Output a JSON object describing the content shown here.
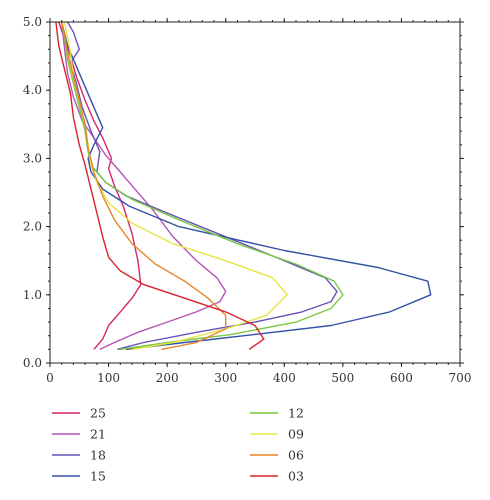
{
  "chart_data": {
    "type": "line",
    "title": "",
    "xlabel": "",
    "ylabel": "",
    "xlim": [
      0,
      700
    ],
    "ylim": [
      0.0,
      5.0
    ],
    "x_ticks": [
      0,
      100,
      200,
      300,
      400,
      500,
      600,
      700
    ],
    "x_tick_labels": [
      "0",
      "100",
      "200",
      "300",
      "400",
      "500",
      "600",
      "700"
    ],
    "y_ticks": [
      0.0,
      1.0,
      2.0,
      3.0,
      4.0,
      5.0
    ],
    "y_tick_labels": [
      "0.0",
      "1.0",
      "2.0",
      "3.0",
      "4.0",
      "5.0"
    ],
    "grid": false,
    "legend_position": "bottom",
    "series": [
      {
        "name": "25",
        "color": "#d6246e",
        "points": [
          [
            75,
            0.2
          ],
          [
            90,
            0.35
          ],
          [
            100,
            0.55
          ],
          [
            120,
            0.75
          ],
          [
            140,
            0.95
          ],
          [
            155,
            1.15
          ],
          [
            150,
            1.5
          ],
          [
            140,
            1.9
          ],
          [
            125,
            2.3
          ],
          [
            110,
            2.6
          ],
          [
            100,
            2.85
          ],
          [
            105,
            3.0
          ],
          [
            90,
            3.3
          ],
          [
            75,
            3.55
          ],
          [
            60,
            3.85
          ],
          [
            45,
            4.2
          ],
          [
            35,
            4.5
          ],
          [
            25,
            4.75
          ],
          [
            15,
            5.0
          ]
        ]
      },
      {
        "name": "21",
        "color": "#b455b8",
        "points": [
          [
            85,
            0.2
          ],
          [
            110,
            0.3
          ],
          [
            150,
            0.45
          ],
          [
            200,
            0.6
          ],
          [
            250,
            0.75
          ],
          [
            290,
            0.9
          ],
          [
            300,
            1.05
          ],
          [
            285,
            1.25
          ],
          [
            250,
            1.5
          ],
          [
            210,
            1.85
          ],
          [
            175,
            2.25
          ],
          [
            145,
            2.55
          ],
          [
            120,
            2.8
          ],
          [
            95,
            3.05
          ],
          [
            75,
            3.3
          ],
          [
            55,
            3.55
          ],
          [
            40,
            3.9
          ],
          [
            30,
            4.25
          ],
          [
            25,
            4.6
          ],
          [
            20,
            5.0
          ]
        ]
      },
      {
        "name": "18",
        "color": "#6a51b5",
        "points": [
          [
            115,
            0.2
          ],
          [
            160,
            0.3
          ],
          [
            250,
            0.45
          ],
          [
            350,
            0.6
          ],
          [
            430,
            0.75
          ],
          [
            480,
            0.9
          ],
          [
            490,
            1.05
          ],
          [
            470,
            1.25
          ],
          [
            400,
            1.5
          ],
          [
            300,
            1.85
          ],
          [
            200,
            2.2
          ],
          [
            130,
            2.45
          ],
          [
            95,
            2.65
          ],
          [
            80,
            2.8
          ],
          [
            85,
            3.1
          ],
          [
            70,
            3.4
          ],
          [
            55,
            3.75
          ],
          [
            45,
            4.1
          ],
          [
            35,
            4.4
          ],
          [
            50,
            4.6
          ],
          [
            40,
            4.85
          ],
          [
            30,
            5.0
          ]
        ]
      },
      {
        "name": "15",
        "color": "#3551a5",
        "points": [
          [
            130,
            0.2
          ],
          [
            230,
            0.3
          ],
          [
            350,
            0.42
          ],
          [
            480,
            0.55
          ],
          [
            580,
            0.75
          ],
          [
            650,
            1.0
          ],
          [
            645,
            1.2
          ],
          [
            560,
            1.4
          ],
          [
            400,
            1.65
          ],
          [
            220,
            2.0
          ],
          [
            135,
            2.3
          ],
          [
            90,
            2.55
          ],
          [
            70,
            2.8
          ],
          [
            65,
            3.0
          ],
          [
            75,
            3.2
          ],
          [
            90,
            3.45
          ],
          [
            75,
            3.75
          ],
          [
            60,
            4.05
          ],
          [
            45,
            4.35
          ],
          [
            30,
            4.65
          ],
          [
            20,
            5.0
          ]
        ]
      },
      {
        "name": "12",
        "color": "#7ac943",
        "points": [
          [
            120,
            0.2
          ],
          [
            200,
            0.3
          ],
          [
            310,
            0.42
          ],
          [
            420,
            0.6
          ],
          [
            480,
            0.8
          ],
          [
            500,
            1.0
          ],
          [
            485,
            1.2
          ],
          [
            420,
            1.45
          ],
          [
            320,
            1.75
          ],
          [
            220,
            2.1
          ],
          [
            140,
            2.4
          ],
          [
            95,
            2.65
          ],
          [
            70,
            2.9
          ],
          [
            65,
            3.1
          ],
          [
            60,
            3.4
          ],
          [
            50,
            3.75
          ],
          [
            40,
            4.1
          ],
          [
            30,
            4.45
          ],
          [
            25,
            4.75
          ],
          [
            20,
            5.0
          ]
        ]
      },
      {
        "name": "09",
        "color": "#e8e542",
        "points": [
          [
            140,
            0.2
          ],
          [
            210,
            0.3
          ],
          [
            300,
            0.5
          ],
          [
            370,
            0.7
          ],
          [
            405,
            1.0
          ],
          [
            380,
            1.25
          ],
          [
            300,
            1.5
          ],
          [
            210,
            1.75
          ],
          [
            140,
            2.05
          ],
          [
            100,
            2.35
          ],
          [
            80,
            2.65
          ],
          [
            70,
            2.9
          ],
          [
            65,
            3.2
          ],
          [
            60,
            3.5
          ],
          [
            50,
            3.85
          ],
          [
            40,
            4.2
          ],
          [
            35,
            4.55
          ],
          [
            25,
            5.0
          ]
        ]
      },
      {
        "name": "06",
        "color": "#e7862c",
        "points": [
          [
            190,
            0.2
          ],
          [
            250,
            0.3
          ],
          [
            300,
            0.5
          ],
          [
            300,
            0.7
          ],
          [
            270,
            0.95
          ],
          [
            230,
            1.2
          ],
          [
            180,
            1.45
          ],
          [
            140,
            1.75
          ],
          [
            110,
            2.1
          ],
          [
            90,
            2.45
          ],
          [
            75,
            2.8
          ],
          [
            65,
            3.15
          ],
          [
            60,
            3.5
          ],
          [
            50,
            3.85
          ],
          [
            40,
            4.2
          ],
          [
            30,
            4.55
          ],
          [
            25,
            4.8
          ],
          [
            20,
            5.0
          ]
        ]
      },
      {
        "name": "03",
        "color": "#d9232c",
        "points": [
          [
            340,
            0.2
          ],
          [
            365,
            0.35
          ],
          [
            350,
            0.55
          ],
          [
            300,
            0.75
          ],
          [
            230,
            0.95
          ],
          [
            160,
            1.15
          ],
          [
            120,
            1.35
          ],
          [
            100,
            1.55
          ],
          [
            90,
            1.85
          ],
          [
            80,
            2.2
          ],
          [
            70,
            2.55
          ],
          [
            60,
            2.9
          ],
          [
            50,
            3.2
          ],
          [
            40,
            3.6
          ],
          [
            35,
            3.95
          ],
          [
            25,
            4.3
          ],
          [
            15,
            4.65
          ],
          [
            10,
            5.0
          ]
        ]
      }
    ]
  }
}
